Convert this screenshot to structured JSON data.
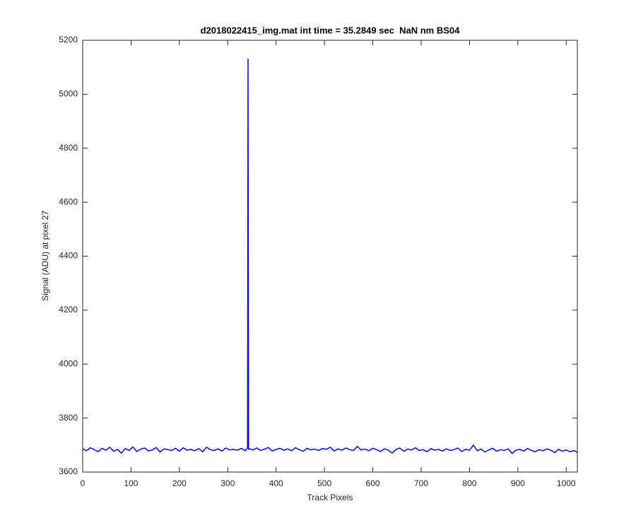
{
  "chart_data": {
    "type": "line",
    "title": "d2018022415_img.mat int time = 35.2849 sec  NaN nm BS04",
    "xlabel": "Track Pixels",
    "ylabel": "Signal (ADU) at pixel 27",
    "color": "#0000ff",
    "xlim": [
      0,
      1023
    ],
    "ylim": [
      3600,
      5200
    ],
    "xticks": [
      0,
      100,
      200,
      300,
      400,
      500,
      600,
      700,
      800,
      900,
      1000
    ],
    "yticks": [
      3600,
      3800,
      4000,
      4200,
      4400,
      4600,
      4800,
      5000,
      5200
    ],
    "x": [
      0,
      8,
      16,
      24,
      32,
      40,
      48,
      56,
      64,
      72,
      80,
      88,
      96,
      104,
      112,
      120,
      128,
      136,
      144,
      152,
      160,
      168,
      176,
      184,
      192,
      200,
      208,
      216,
      224,
      232,
      240,
      248,
      256,
      264,
      272,
      280,
      288,
      296,
      304,
      312,
      320,
      328,
      336,
      341,
      342,
      343,
      344,
      352,
      360,
      368,
      376,
      384,
      392,
      400,
      408,
      416,
      424,
      432,
      440,
      448,
      456,
      464,
      472,
      480,
      488,
      496,
      504,
      512,
      520,
      528,
      536,
      544,
      552,
      560,
      568,
      576,
      584,
      592,
      600,
      608,
      616,
      624,
      632,
      640,
      648,
      656,
      664,
      672,
      680,
      688,
      696,
      704,
      712,
      720,
      728,
      736,
      744,
      752,
      760,
      768,
      776,
      784,
      792,
      800,
      808,
      816,
      824,
      832,
      840,
      848,
      856,
      864,
      872,
      880,
      888,
      896,
      904,
      912,
      920,
      928,
      936,
      944,
      952,
      960,
      968,
      976,
      984,
      992,
      1000,
      1008,
      1016,
      1023
    ],
    "values": [
      3686,
      3679,
      3690,
      3683,
      3675,
      3688,
      3681,
      3692,
      3677,
      3684,
      3670,
      3687,
      3680,
      3693,
      3676,
      3685,
      3689,
      3678,
      3682,
      3691,
      3674,
      3686,
      3683,
      3680,
      3688,
      3677,
      3690,
      3681,
      3684,
      3679,
      3687,
      3675,
      3692,
      3683,
      3680,
      3686,
      3678,
      3689,
      3682,
      3684,
      3681,
      3688,
      3679,
      3690,
      5130,
      3684,
      3687,
      3682,
      3689,
      3680,
      3685,
      3691,
      3678,
      3684,
      3688,
      3681,
      3686,
      3679,
      3690,
      3683,
      3677,
      3688,
      3682,
      3685,
      3680,
      3687,
      3684,
      3692,
      3678,
      3686,
      3681,
      3689,
      3683,
      3680,
      3695,
      3682,
      3685,
      3679,
      3688,
      3683,
      3676,
      3686,
      3681,
      3670,
      3684,
      3689,
      3677,
      3685,
      3682,
      3690,
      3680,
      3683,
      3675,
      3687,
      3681,
      3684,
      3678,
      3686,
      3680,
      3683,
      3689,
      3676,
      3684,
      3681,
      3700,
      3679,
      3685,
      3674,
      3682,
      3688,
      3677,
      3683,
      3680,
      3686,
      3669,
      3681,
      3684,
      3678,
      3687,
      3680,
      3675,
      3683,
      3679,
      3686,
      3681,
      3672,
      3684,
      3677,
      3682,
      3675,
      3680,
      3673
    ]
  }
}
